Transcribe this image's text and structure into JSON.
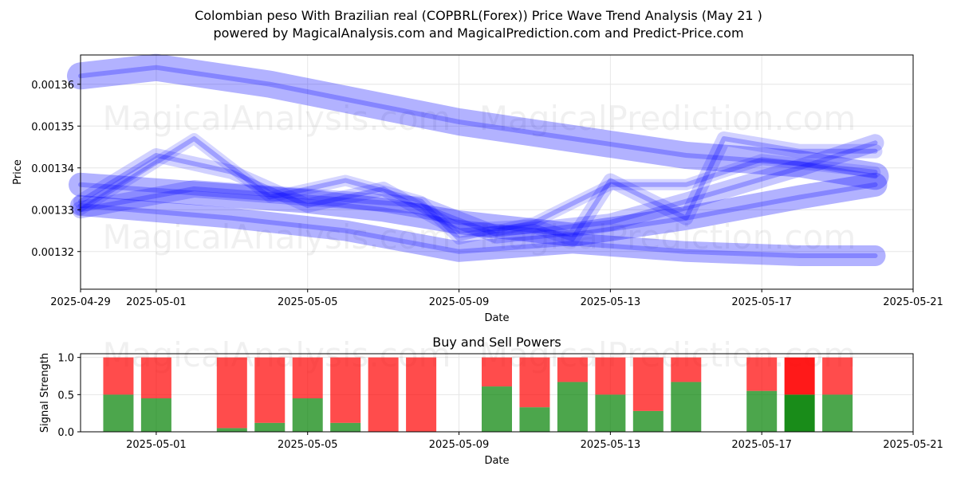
{
  "titles": {
    "line1": "Colombian peso With Brazilian real (COPBRL(Forex)) Price Wave Trend Analysis (May 21 )",
    "line2": "powered by MagicalAnalysis.com and MagicalPrediction.com and Predict-Price.com"
  },
  "watermarks": {
    "a": "MagicalAnalysis.com",
    "b": "MagicalPrediction.com"
  },
  "colors": {
    "band": "#0000ff",
    "buy": "#008000",
    "sell": "#ff0000",
    "grid": "#e6e6e6"
  },
  "chart_data": [
    {
      "type": "line",
      "title": "",
      "xlabel": "Date",
      "ylabel": "Price",
      "x_ticks": [
        "2025-04-29",
        "2025-05-01",
        "2025-05-05",
        "2025-05-09",
        "2025-05-13",
        "2025-05-17",
        "2025-05-21"
      ],
      "y_ticks": [
        "0.00132",
        "0.00133",
        "0.00134",
        "0.00135",
        "0.00136"
      ],
      "xlim": [
        "2025-04-29",
        "2025-05-21"
      ],
      "ylim": [
        0.001311,
        0.001367
      ],
      "grid": true,
      "series": [
        {
          "x": [
            "2025-04-29",
            "2025-05-01",
            "2025-05-04",
            "2025-05-09",
            "2025-05-12",
            "2025-05-15",
            "2025-05-18",
            "2025-05-20"
          ],
          "values": [
            0.001362,
            0.001364,
            0.00136,
            0.001351,
            0.001347,
            0.001343,
            0.001341,
            0.001338
          ]
        },
        {
          "x": [
            "2025-04-29",
            "2025-05-02",
            "2025-05-05",
            "2025-05-07",
            "2025-05-09",
            "2025-05-12",
            "2025-05-15",
            "2025-05-18",
            "2025-05-20"
          ],
          "values": [
            0.001336,
            0.001334,
            0.001332,
            0.00133,
            0.001327,
            0.001324,
            0.001328,
            0.001333,
            0.001336
          ]
        },
        {
          "x": [
            "2025-04-29",
            "2025-05-03",
            "2025-05-06",
            "2025-05-09",
            "2025-05-12",
            "2025-05-15",
            "2025-05-18",
            "2025-05-20"
          ],
          "values": [
            0.001331,
            0.001328,
            0.001325,
            0.00132,
            0.001322,
            0.00132,
            0.001319,
            0.001319
          ]
        },
        {
          "x": [
            "2025-04-29",
            "2025-05-02",
            "2025-05-05",
            "2025-05-08",
            "2025-05-10",
            "2025-05-13",
            "2025-05-15",
            "2025-05-18",
            "2025-05-20"
          ],
          "values": [
            0.00133,
            0.001335,
            0.001333,
            0.001331,
            0.001324,
            0.001327,
            0.001332,
            0.00134,
            0.001346
          ]
        },
        {
          "x": [
            "2025-04-29",
            "2025-05-01",
            "2025-05-03",
            "2025-05-05",
            "2025-05-07",
            "2025-05-09",
            "2025-05-11",
            "2025-05-12",
            "2025-05-13",
            "2025-05-15",
            "2025-05-16",
            "2025-05-18",
            "2025-05-20"
          ],
          "values": [
            0.001332,
            0.001343,
            0.001339,
            0.001331,
            0.001335,
            0.001325,
            0.001326,
            0.001323,
            0.001337,
            0.001328,
            0.001347,
            0.001344,
            0.001344
          ]
        },
        {
          "x": [
            "2025-04-29",
            "2025-05-02",
            "2025-05-04",
            "2025-05-06",
            "2025-05-08",
            "2025-05-09",
            "2025-05-11",
            "2025-05-13",
            "2025-05-15",
            "2025-05-17",
            "2025-05-20"
          ],
          "values": [
            0.00133,
            0.001347,
            0.001333,
            0.001337,
            0.001332,
            0.001323,
            0.001327,
            0.001336,
            0.001336,
            0.001342,
            0.001339
          ]
        }
      ]
    },
    {
      "type": "bar",
      "title": "Buy and Sell Powers",
      "xlabel": "Date",
      "ylabel": "Signal Strength",
      "x_ticks": [
        "2025-05-01",
        "2025-05-05",
        "2025-05-09",
        "2025-05-13",
        "2025-05-17",
        "2025-05-21"
      ],
      "y_ticks": [
        "0.0",
        "0.5",
        "1.0"
      ],
      "ylim": [
        0,
        1.05
      ],
      "grid": true,
      "categories": [
        "2025-04-30",
        "2025-05-01",
        "2025-05-03",
        "2025-05-04",
        "2025-05-05",
        "2025-05-06",
        "2025-05-07",
        "2025-05-08",
        "2025-05-10",
        "2025-05-11",
        "2025-05-12",
        "2025-05-13",
        "2025-05-14",
        "2025-05-15",
        "2025-05-17",
        "2025-05-18",
        "2025-05-19"
      ],
      "series": [
        {
          "name": "buy",
          "values": [
            0.5,
            0.45,
            0.05,
            0.12,
            0.45,
            0.12,
            0.0,
            0.0,
            0.61,
            0.33,
            0.67,
            0.5,
            0.28,
            0.67,
            0.55,
            0.5,
            0.5
          ]
        },
        {
          "name": "sell",
          "values": [
            0.5,
            0.55,
            0.95,
            0.88,
            0.55,
            0.88,
            1.0,
            1.0,
            0.39,
            0.67,
            0.33,
            0.5,
            0.72,
            0.33,
            0.45,
            0.5,
            0.5
          ]
        }
      ],
      "highlight_index": 15
    }
  ]
}
